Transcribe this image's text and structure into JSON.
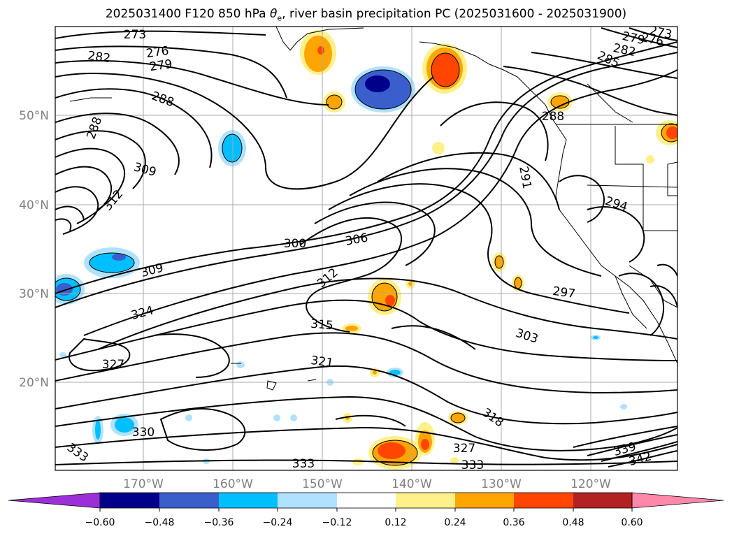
{
  "title": {
    "prefix": "2025031400 F120 850 hPa ",
    "symbol": "θ",
    "subscript": "e",
    "suffix": ", river basin precipitation PC (2025031600 - 2025031900)"
  },
  "map": {
    "lat_labels": [
      "50°N",
      "40°N",
      "30°N",
      "20°N"
    ],
    "lon_labels": [
      "170°W",
      "160°W",
      "150°W",
      "140°W",
      "130°W",
      "120°W"
    ]
  },
  "contour_labels": [
    "273",
    "276",
    "279",
    "282",
    "285",
    "288",
    "288",
    "288",
    "291",
    "294",
    "297",
    "300",
    "303",
    "306",
    "309",
    "309",
    "312",
    "312",
    "315",
    "318",
    "321",
    "324",
    "327",
    "327",
    "330",
    "333",
    "333",
    "333",
    "339",
    "342",
    "273",
    "276",
    "279",
    "282"
  ],
  "colorbar": {
    "ticks": [
      "−0.60",
      "−0.48",
      "−0.36",
      "−0.24",
      "−0.12",
      "0.12",
      "0.24",
      "0.36",
      "0.48",
      "0.60"
    ],
    "colors": [
      "#9b30d9",
      "#00008b",
      "#3a5fcd",
      "#00bfff",
      "#b0e2ff",
      "#ffffff",
      "#fff08a",
      "#ffa500",
      "#ff4500",
      "#b22222",
      "#ff88aa"
    ]
  },
  "colors": {
    "negative_light": "#b0e2ff",
    "negative_mid": "#00bfff",
    "negative_dark": "#3a5fcd",
    "negative_darkest": "#00008b",
    "positive_light": "#fff08a",
    "positive_mid": "#ffa500",
    "positive_dark": "#ff4500"
  }
}
